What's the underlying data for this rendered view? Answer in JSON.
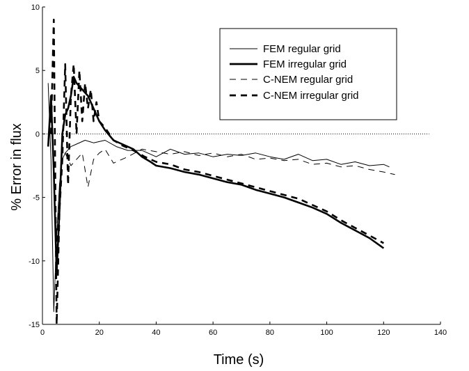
{
  "chart_data": {
    "type": "line",
    "title": "",
    "xlabel": "Time (s)",
    "ylabel": "% Error in flux",
    "xlim": [
      0,
      140
    ],
    "ylim": [
      -15,
      10
    ],
    "xticks": [
      0,
      20,
      40,
      60,
      80,
      100,
      120,
      140
    ],
    "yticks": [
      -15,
      -10,
      -5,
      0,
      5,
      10
    ],
    "grid": false,
    "legend_position": "top-right",
    "reference_line": {
      "y": 0,
      "style": "dotted"
    },
    "series": [
      {
        "name": "FEM regular grid",
        "style": "thin-solid",
        "points": [
          [
            2,
            4
          ],
          [
            3,
            -2
          ],
          [
            4,
            -14
          ],
          [
            5,
            -8
          ],
          [
            6,
            -4
          ],
          [
            7,
            -2
          ],
          [
            8,
            -1.5
          ],
          [
            10,
            -1
          ],
          [
            12,
            -0.8
          ],
          [
            15,
            -0.5
          ],
          [
            18,
            -0.7
          ],
          [
            22,
            -0.5
          ],
          [
            26,
            -1.0
          ],
          [
            30,
            -1.3
          ],
          [
            35,
            -1.3
          ],
          [
            40,
            -1.8
          ],
          [
            45,
            -1.2
          ],
          [
            50,
            -1.6
          ],
          [
            55,
            -1.5
          ],
          [
            60,
            -1.8
          ],
          [
            65,
            -1.6
          ],
          [
            70,
            -1.7
          ],
          [
            75,
            -1.5
          ],
          [
            80,
            -1.8
          ],
          [
            85,
            -2.0
          ],
          [
            90,
            -1.6
          ],
          [
            95,
            -2.1
          ],
          [
            100,
            -2.0
          ],
          [
            105,
            -2.4
          ],
          [
            110,
            -2.2
          ],
          [
            115,
            -2.5
          ],
          [
            120,
            -2.4
          ],
          [
            122,
            -2.6
          ]
        ]
      },
      {
        "name": "FEM irregular grid",
        "style": "thick-solid",
        "points": [
          [
            2,
            -1
          ],
          [
            3,
            3
          ],
          [
            4,
            -3
          ],
          [
            5,
            -11
          ],
          [
            6,
            -6
          ],
          [
            7,
            0
          ],
          [
            8,
            1.5
          ],
          [
            9,
            2
          ],
          [
            10,
            3
          ],
          [
            11,
            4.5
          ],
          [
            12,
            4
          ],
          [
            14,
            3.5
          ],
          [
            16,
            3
          ],
          [
            18,
            2
          ],
          [
            20,
            1
          ],
          [
            22,
            0.3
          ],
          [
            25,
            -0.5
          ],
          [
            28,
            -0.8
          ],
          [
            32,
            -1.2
          ],
          [
            35,
            -1.8
          ],
          [
            38,
            -2.2
          ],
          [
            40,
            -2.5
          ],
          [
            45,
            -2.7
          ],
          [
            50,
            -3.0
          ],
          [
            55,
            -3.2
          ],
          [
            60,
            -3.5
          ],
          [
            65,
            -3.8
          ],
          [
            70,
            -4.0
          ],
          [
            75,
            -4.4
          ],
          [
            80,
            -4.7
          ],
          [
            85,
            -5.0
          ],
          [
            90,
            -5.4
          ],
          [
            95,
            -5.8
          ],
          [
            100,
            -6.3
          ],
          [
            105,
            -7.0
          ],
          [
            110,
            -7.6
          ],
          [
            115,
            -8.2
          ],
          [
            120,
            -9.0
          ]
        ]
      },
      {
        "name": "C-NEM regular grid",
        "style": "thin-dashed",
        "points": [
          [
            2,
            -0.5
          ],
          [
            3,
            2
          ],
          [
            4,
            -3
          ],
          [
            5,
            -9
          ],
          [
            6,
            -4
          ],
          [
            7,
            -2
          ],
          [
            8,
            -1.5
          ],
          [
            10,
            -2.5
          ],
          [
            12,
            -2
          ],
          [
            14,
            -1.5
          ],
          [
            16,
            -4.2
          ],
          [
            18,
            -2
          ],
          [
            20,
            -1.5
          ],
          [
            22,
            -1.2
          ],
          [
            25,
            -2.3
          ],
          [
            28,
            -2.0
          ],
          [
            30,
            -1.8
          ],
          [
            35,
            -1.2
          ],
          [
            40,
            -1.4
          ],
          [
            45,
            -1.6
          ],
          [
            50,
            -1.4
          ],
          [
            55,
            -1.7
          ],
          [
            60,
            -1.5
          ],
          [
            65,
            -1.8
          ],
          [
            70,
            -1.6
          ],
          [
            75,
            -2.0
          ],
          [
            80,
            -1.9
          ],
          [
            85,
            -2.1
          ],
          [
            90,
            -2.0
          ],
          [
            95,
            -2.4
          ],
          [
            100,
            -2.3
          ],
          [
            105,
            -2.6
          ],
          [
            110,
            -2.5
          ],
          [
            115,
            -2.8
          ],
          [
            120,
            -3.0
          ],
          [
            124,
            -3.2
          ]
        ]
      },
      {
        "name": "C-NEM irregular grid",
        "style": "thick-dashed",
        "points": [
          [
            3,
            0
          ],
          [
            4,
            9
          ],
          [
            5,
            -15
          ],
          [
            6,
            -6
          ],
          [
            7,
            -2
          ],
          [
            8,
            5.5
          ],
          [
            9,
            -4
          ],
          [
            10,
            3
          ],
          [
            11,
            5.5
          ],
          [
            12,
            0
          ],
          [
            13,
            5
          ],
          [
            14,
            1
          ],
          [
            15,
            4
          ],
          [
            16,
            2
          ],
          [
            17,
            3.5
          ],
          [
            18,
            1
          ],
          [
            19,
            2.5
          ],
          [
            20,
            1
          ],
          [
            22,
            0.5
          ],
          [
            25,
            -0.5
          ],
          [
            28,
            -0.9
          ],
          [
            32,
            -1.3
          ],
          [
            36,
            -1.8
          ],
          [
            40,
            -2.2
          ],
          [
            45,
            -2.4
          ],
          [
            50,
            -2.8
          ],
          [
            55,
            -3.0
          ],
          [
            60,
            -3.3
          ],
          [
            65,
            -3.6
          ],
          [
            70,
            -3.9
          ],
          [
            75,
            -4.2
          ],
          [
            80,
            -4.5
          ],
          [
            85,
            -4.8
          ],
          [
            90,
            -5.1
          ],
          [
            95,
            -5.6
          ],
          [
            100,
            -6.1
          ],
          [
            105,
            -6.8
          ],
          [
            110,
            -7.4
          ],
          [
            115,
            -8.0
          ],
          [
            120,
            -8.6
          ]
        ]
      }
    ]
  }
}
